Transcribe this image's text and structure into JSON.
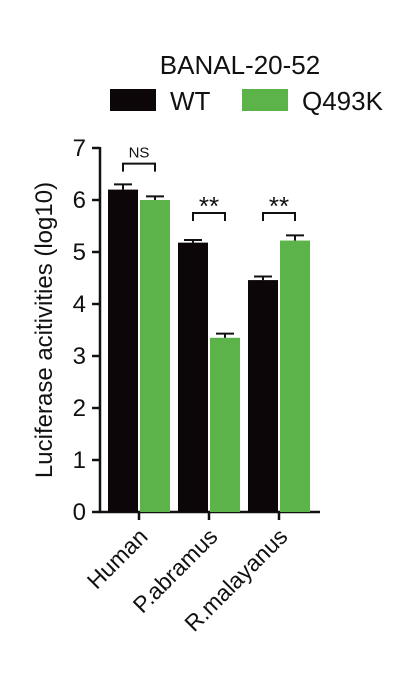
{
  "chart_data": {
    "type": "bar",
    "title": "BANAL-20-52",
    "ylabel": "Luciferase acitivities (log10)",
    "xlabel": "",
    "ylim": [
      0,
      7
    ],
    "yticks": [
      "0",
      "1",
      "2",
      "3",
      "4",
      "5",
      "6",
      "7"
    ],
    "categories": [
      "Human",
      "P.abramus",
      "R.malayanus"
    ],
    "series": [
      {
        "name": "WT",
        "color": "#0d0608",
        "values": [
          6.2,
          5.18,
          4.46
        ],
        "errors": [
          0.1,
          0.05,
          0.07
        ]
      },
      {
        "name": "Q493K",
        "color": "#5cb34a",
        "values": [
          6.0,
          3.35,
          5.22
        ],
        "errors": [
          0.07,
          0.08,
          0.1
        ]
      }
    ],
    "significance": [
      "NS",
      "**",
      "**"
    ],
    "legend_position": "top",
    "grid": false,
    "error_bars": true
  }
}
